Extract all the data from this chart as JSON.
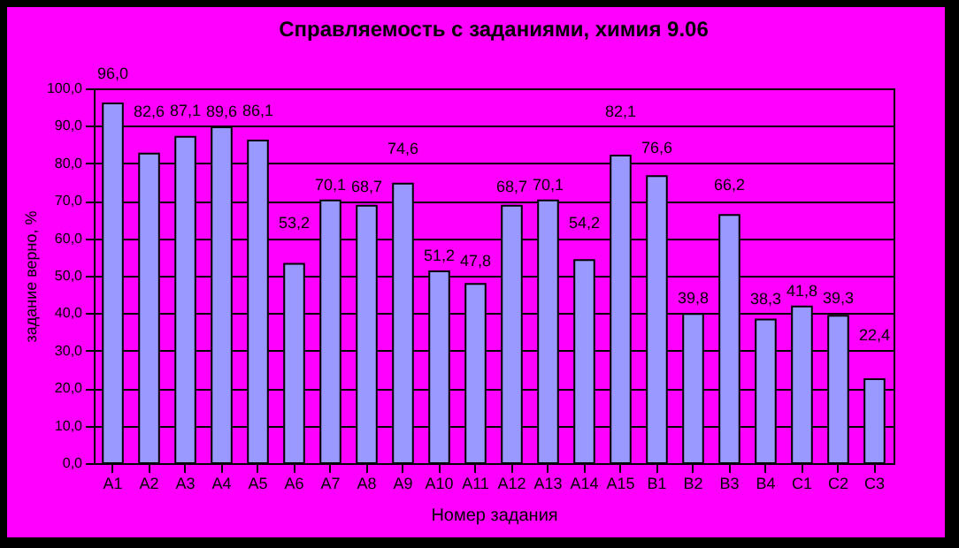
{
  "chart_data": {
    "type": "bar",
    "title": "Справляемость с заданиями, химия 9.06",
    "xlabel": "Номер задания",
    "ylabel": "задание верно, %",
    "categories": [
      "A1",
      "A2",
      "A3",
      "A4",
      "A5",
      "A6",
      "A7",
      "A8",
      "A9",
      "A10",
      "A11",
      "A12",
      "A13",
      "A14",
      "A15",
      "B1",
      "B2",
      "B3",
      "B4",
      "C1",
      "C2",
      "C3"
    ],
    "values": [
      96.0,
      82.6,
      87.1,
      89.6,
      86.1,
      53.2,
      70.1,
      68.7,
      74.6,
      51.2,
      47.8,
      68.7,
      70.1,
      54.2,
      82.1,
      76.6,
      39.8,
      66.2,
      38.3,
      41.8,
      39.3,
      22.4
    ],
    "value_labels": [
      "96,0",
      "82,6",
      "87,1",
      "89,6",
      "86,1",
      "53,2",
      "70,1",
      "68,7",
      "74,6",
      "51,2",
      "47,8",
      "68,7",
      "70,1",
      "54,2",
      "82,1",
      "76,6",
      "39,8",
      "66,2",
      "38,3",
      "41,8",
      "39,3",
      "22,4"
    ],
    "color": "#9999ff",
    "ylim": [
      0,
      100
    ],
    "yticks": [
      {
        "value": 0,
        "label": "0,0"
      },
      {
        "value": 10,
        "label": "10,0"
      },
      {
        "value": 20,
        "label": "20,0"
      },
      {
        "value": 30,
        "label": "30,0"
      },
      {
        "value": 40,
        "label": "40,0"
      },
      {
        "value": 50,
        "label": "50,0"
      },
      {
        "value": 60,
        "label": "60,0"
      },
      {
        "value": 70,
        "label": "70,0"
      },
      {
        "value": 80,
        "label": "80,0"
      },
      {
        "value": 90,
        "label": "90,0"
      },
      {
        "value": 100,
        "label": "100,0"
      }
    ],
    "grid": "y"
  }
}
